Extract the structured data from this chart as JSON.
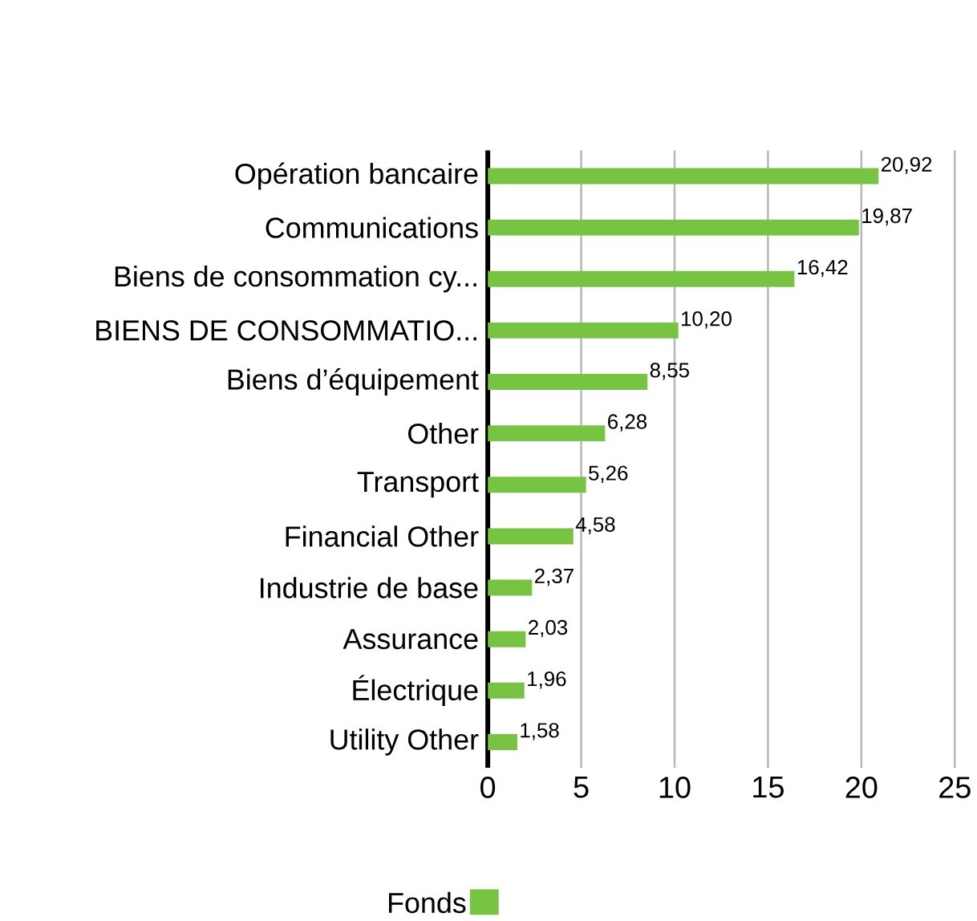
{
  "chart_data": {
    "type": "bar",
    "orientation": "horizontal",
    "categories": [
      "Opération bancaire",
      "Communications",
      "Biens de consommation cy...",
      "BIENS DE CONSOMMATIO...",
      "Biens d’équipement",
      "Other",
      "Transport",
      "Financial Other",
      "Industrie de base",
      "Assurance",
      "Électrique",
      "Utility Other"
    ],
    "series": [
      {
        "name": "Fonds",
        "color": "#76c442",
        "values": [
          20.92,
          19.87,
          16.42,
          10.2,
          8.55,
          6.28,
          5.26,
          4.58,
          2.37,
          2.03,
          1.96,
          1.58
        ],
        "value_labels": [
          "20,92",
          "19,87",
          "16,42",
          "10,20",
          "8,55",
          "6,28",
          "5,26",
          "4,58",
          "2,37",
          "2,03",
          "1,96",
          "1,58"
        ]
      }
    ],
    "xlim": [
      0,
      25
    ],
    "xticks": [
      0,
      5,
      10,
      15,
      20,
      25
    ],
    "grid": "x",
    "legend": "bottom"
  }
}
